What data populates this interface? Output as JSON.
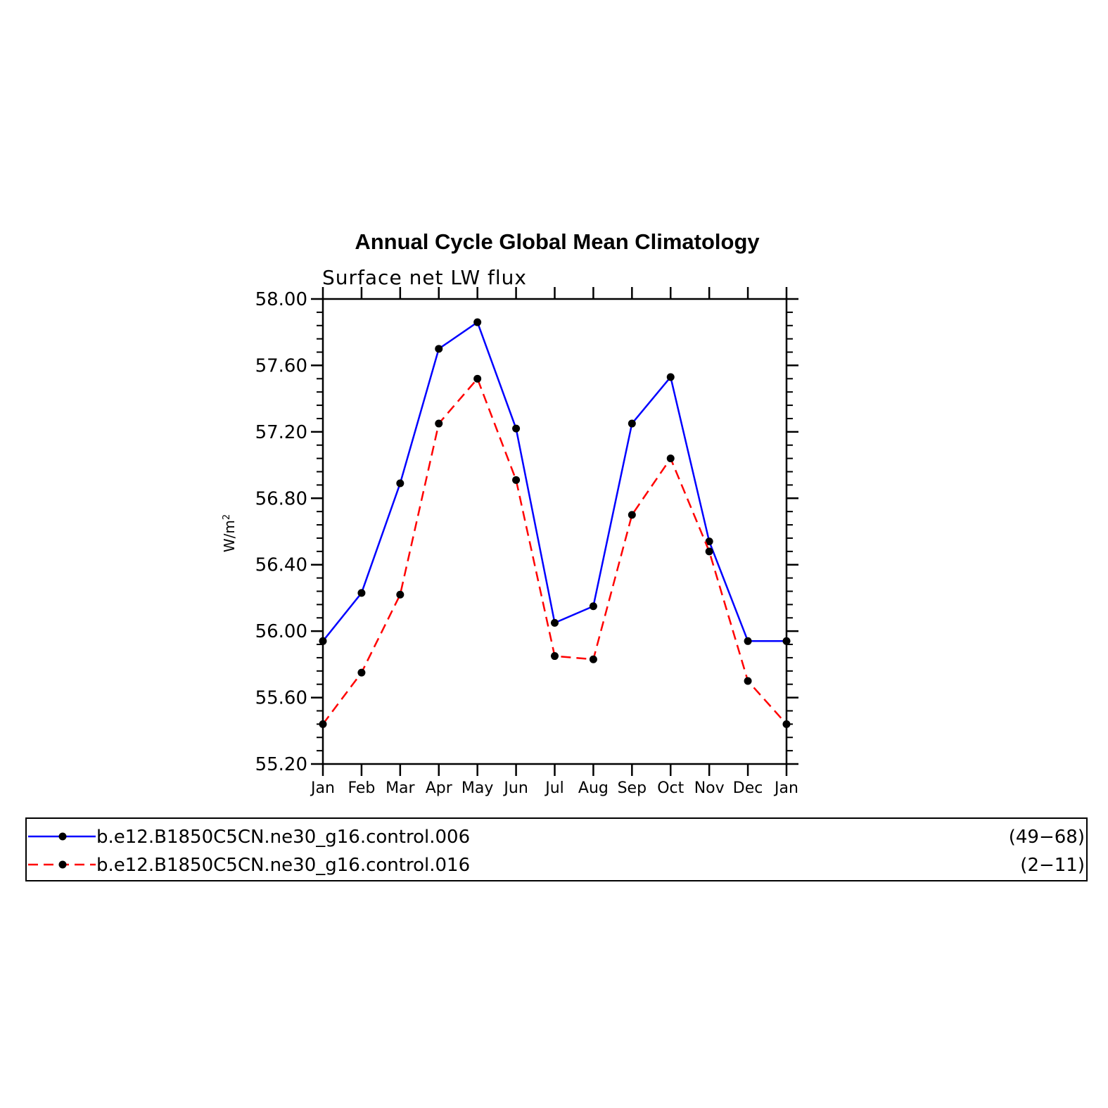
{
  "chart_data": {
    "type": "line",
    "title": "Annual Cycle Global Mean Climatology",
    "subtitle": "Surface net LW flux",
    "ylabel": "W/m",
    "ylabel_sup": "2",
    "xlabel": "",
    "categories": [
      "Jan",
      "Feb",
      "Mar",
      "Apr",
      "May",
      "Jun",
      "Jul",
      "Aug",
      "Sep",
      "Oct",
      "Nov",
      "Dec",
      "Jan"
    ],
    "ylim": [
      55.2,
      58.0
    ],
    "yticks": [
      "55.20",
      "55.60",
      "56.00",
      "56.40",
      "56.80",
      "57.20",
      "57.60",
      "58.00"
    ],
    "grid": false,
    "legend_position": "bottom",
    "series": [
      {
        "name": "b.e12.B1850C5CN.ne30_g16.control.006",
        "period": "(49−68)",
        "color": "#0000ff",
        "dash": "solid",
        "values": [
          55.94,
          56.23,
          56.89,
          57.7,
          57.86,
          57.22,
          56.05,
          56.15,
          57.25,
          57.53,
          56.54,
          55.94,
          55.94
        ]
      },
      {
        "name": "b.e12.B1850C5CN.ne30_g16.control.016",
        "period": "(2−11)",
        "color": "#ff0000",
        "dash": "dashed",
        "values": [
          55.44,
          55.75,
          56.22,
          57.25,
          57.52,
          56.91,
          55.85,
          55.83,
          56.7,
          57.04,
          56.48,
          55.7,
          55.44
        ]
      }
    ]
  }
}
